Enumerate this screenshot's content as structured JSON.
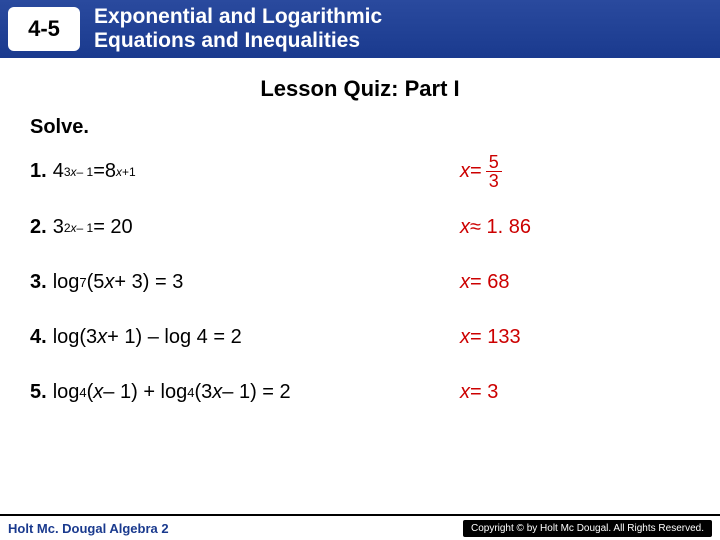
{
  "header": {
    "lesson_number": "4-5",
    "title_line1": "Exponential and Logarithmic",
    "title_line2": "Equations and Inequalities",
    "header_bg": "#1a3a8e",
    "header_text_color": "#ffffff"
  },
  "quiz_title": "Lesson Quiz: Part I",
  "solve_label": "Solve.",
  "answer_color": "#cc0000",
  "problems": [
    {
      "num": "1.",
      "base1": "4",
      "exp1_pre": "3",
      "exp1_var": "x",
      "exp1_post": "– 1",
      "eq": "  =  ",
      "base2": "8",
      "exp2_var": "x",
      "exp2_post": "+1",
      "ans_var": "x",
      "ans_eq": " = ",
      "frac_top": "5",
      "frac_bot": "3"
    },
    {
      "num": "2.",
      "base1": "3",
      "exp1_pre": "2",
      "exp1_var": "x",
      "exp1_post": "– 1",
      "eq": " = 20",
      "ans_var": "x",
      "ans_rel": " ≈ 1. 86"
    },
    {
      "num": "3.",
      "pre": "log",
      "sub": "7",
      "body_open": "(5",
      "body_var": "x",
      "body_close": " + 3) = 3",
      "ans_var": "x",
      "ans_rel": " = 68"
    },
    {
      "num": "4.",
      "pre": "log(3",
      "body_var": "x",
      "body_close": " + 1) – log 4 = 2",
      "ans_var": "x",
      "ans_rel": " = 133"
    },
    {
      "num": "5.",
      "pre": "log",
      "sub": "4",
      "mid1_open": "(",
      "mid1_var": "x",
      "mid1_close": " – 1) + log",
      "sub2": "4",
      "mid2_open": "(3",
      "mid2_var": "x",
      "mid2_close": " – 1) = 2",
      "ans_var": "x",
      "ans_rel": " = 3"
    }
  ],
  "footer": {
    "book": "Holt Mc. Dougal Algebra 2",
    "copyright": "Copyright © by Holt Mc Dougal. All Rights Reserved."
  }
}
